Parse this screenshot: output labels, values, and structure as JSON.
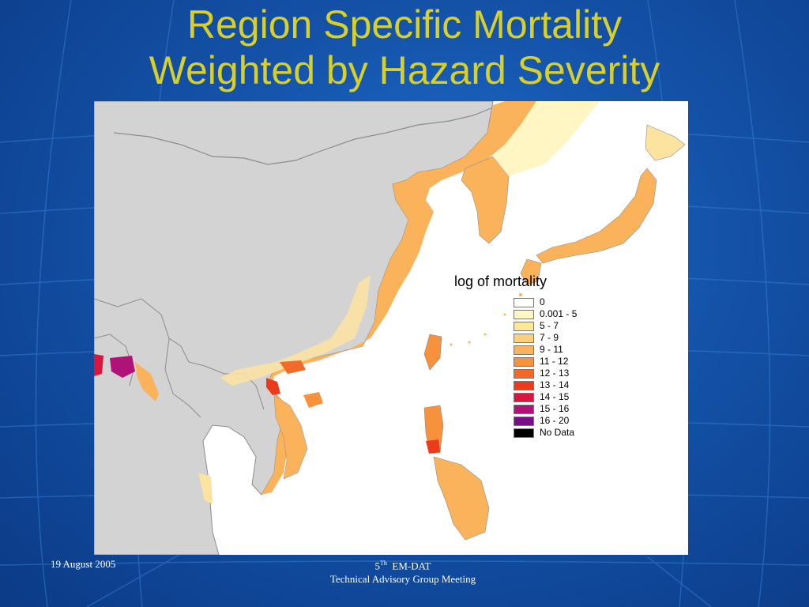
{
  "slide": {
    "title_line1": "Region Specific Mortality",
    "title_line2": "Weighted by Hazard Severity",
    "footer_date": "19 August 2005",
    "footer_num": "5",
    "footer_sup": "Th",
    "footer_org": "EM-DAT",
    "footer_line2": "Technical Advisory Group Meeting"
  },
  "legend": {
    "title": "log of mortality",
    "items": [
      {
        "label": "0",
        "color": "#ffffff"
      },
      {
        "label": "0.001 - 5",
        "color": "#fff6c4"
      },
      {
        "label": "5 - 7",
        "color": "#ffe79a"
      },
      {
        "label": "7 - 9",
        "color": "#fdd07c"
      },
      {
        "label": "9 - 11",
        "color": "#fbb35b"
      },
      {
        "label": "11 - 12",
        "color": "#f7913c"
      },
      {
        "label": "12 - 13",
        "color": "#f26a28"
      },
      {
        "label": "13 - 14",
        "color": "#ec3b1c"
      },
      {
        "label": "14 - 15",
        "color": "#d7173f"
      },
      {
        "label": "15 - 16",
        "color": "#b01377"
      },
      {
        "label": "16 - 20",
        "color": "#7a0d8a"
      },
      {
        "label": "No Data",
        "color": "#000000"
      }
    ]
  },
  "colors": {
    "land_no_data_region": "#d3d3d3",
    "border": "#8c8c8c",
    "title": "#d7d02a",
    "background": "#1452a8"
  }
}
